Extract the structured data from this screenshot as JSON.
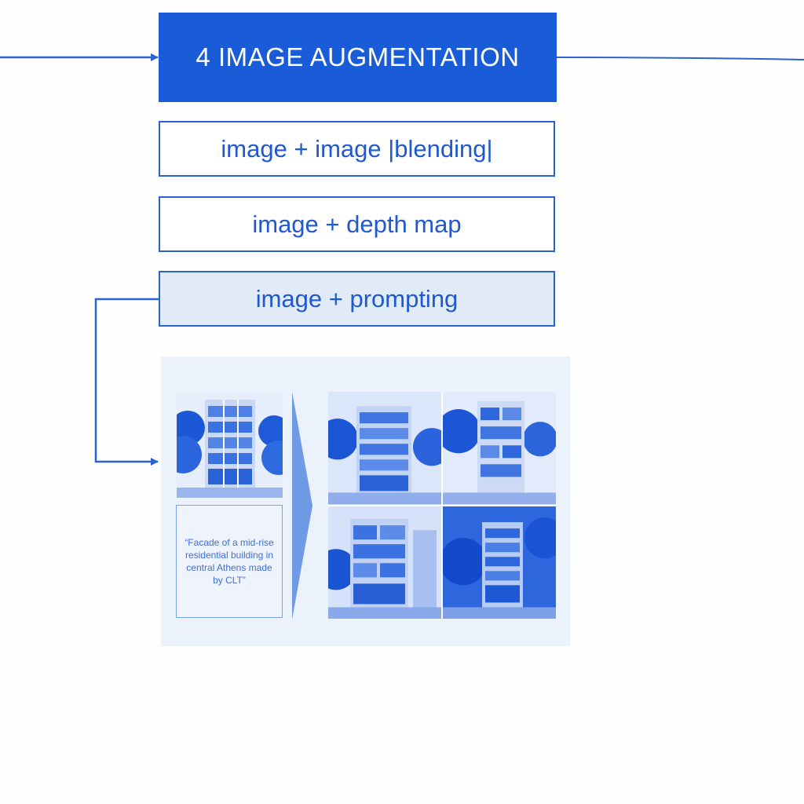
{
  "header": {
    "title": "4 IMAGE AUGMENTATION"
  },
  "options": [
    {
      "label": "image + image |blending|"
    },
    {
      "label": "image + depth map"
    },
    {
      "label": "image + prompting"
    }
  ],
  "example": {
    "prompt_text": "“Facade of a mid-rise residential building in central Athens made by CLT”",
    "input_image": "building-facade-input-image",
    "outputs": [
      {
        "icon": "generated-building-image-1"
      },
      {
        "icon": "generated-building-image-2"
      },
      {
        "icon": "generated-building-image-3"
      },
      {
        "icon": "generated-building-image-4"
      }
    ]
  },
  "colors": {
    "accent": "#1a5bd7",
    "border": "#2a62d0",
    "active_fill": "#e1ebf8",
    "panel": "#ecf2fb"
  }
}
